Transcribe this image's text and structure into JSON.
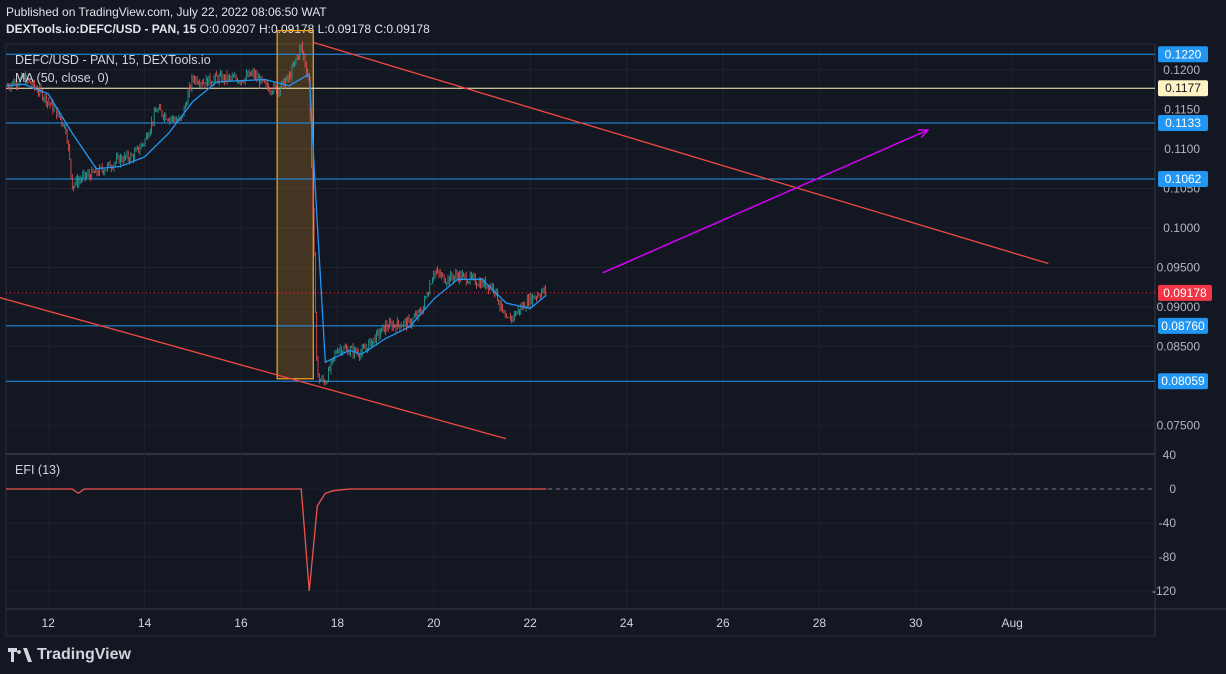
{
  "header": {
    "published": "Published on TradingView.com, July 22, 2022 08:06:50 WAT",
    "symbol_line": "DEXTools.io:DEFC/USD - PAN, 15",
    "ohlc": "O:0.09207 H:0.09178 L:0.09178 C:0.09178"
  },
  "legend": {
    "symbol": "DEFC/USD - PAN, 15, DEXTools.io",
    "ma": "MA (50, close, 0)",
    "efi": "EFI (13)"
  },
  "branding": {
    "logo_text": "TradingView"
  },
  "colors": {
    "background": "#131722",
    "grid": "#1e222d",
    "up": "#26a69a",
    "down": "#ef5350",
    "ma": "#2196f3",
    "trendline": "#f04a3e",
    "arrow": "#d500f9",
    "hline": "#2196f3",
    "resistance_yellow": "#fff3c4",
    "highlight_box": "#f5a623",
    "price_tag": "#f23645"
  },
  "chart_data": [
    {
      "type": "candlestick",
      "title": "DEFC/USD - PAN, 15, DEXTools.io",
      "x_ticks": [
        "12",
        "14",
        "16",
        "18",
        "20",
        "22",
        "24",
        "26",
        "28",
        "30",
        "Aug"
      ],
      "y_ticks": [
        "0.1200",
        "0.1150",
        "0.1100",
        "0.1050",
        "0.1000",
        "0.09500",
        "0.09000",
        "0.08500",
        "0.07500"
      ],
      "ylim": [
        0.0715,
        0.1233
      ],
      "grid": true,
      "last_price": 0.09178,
      "horizontal_levels": [
        {
          "value": 0.122,
          "label": "0.1220",
          "style": "blue"
        },
        {
          "value": 0.1177,
          "label": "0.1177",
          "style": "yellow"
        },
        {
          "value": 0.1133,
          "label": "0.1133",
          "style": "blue"
        },
        {
          "value": 0.1062,
          "label": "0.1062",
          "style": "blue"
        },
        {
          "value": 0.0876,
          "label": "0.08760",
          "style": "blue"
        },
        {
          "value": 0.08059,
          "label": "0.08059",
          "style": "blue"
        }
      ],
      "price_path": [
        [
          "Jul 11 03:00",
          0.118
        ],
        [
          "Jul 11 12:00",
          0.119
        ],
        [
          "Jul 11 21:00",
          0.117
        ],
        [
          "Jul 12 03:00",
          0.115
        ],
        [
          "Jul 12 06:00",
          0.114
        ],
        [
          "Jul 12 09:00",
          0.1125
        ],
        [
          "Jul 12 12:00",
          0.1055
        ],
        [
          "Jul 12 18:00",
          0.1065
        ],
        [
          "Jul 13 00:00",
          0.107
        ],
        [
          "Jul 13 06:00",
          0.1078
        ],
        [
          "Jul 13 12:00",
          0.1088
        ],
        [
          "Jul 13 18:00",
          0.109
        ],
        [
          "Jul 14 00:00",
          0.111
        ],
        [
          "Jul 14 06:00",
          0.115
        ],
        [
          "Jul 14 12:00",
          0.114
        ],
        [
          "Jul 14 18:00",
          0.1135
        ],
        [
          "Jul 15 00:00",
          0.119
        ],
        [
          "Jul 15 06:00",
          0.1185
        ],
        [
          "Jul 15 12:00",
          0.119
        ],
        [
          "Jul 16 00:00",
          0.1188
        ],
        [
          "Jul 16 06:00",
          0.1195
        ],
        [
          "Jul 16 12:00",
          0.118
        ],
        [
          "Jul 16 18:00",
          0.1175
        ],
        [
          "Jul 17 00:00",
          0.119
        ],
        [
          "Jul 17 06:00",
          0.123
        ],
        [
          "Jul 17 10:00",
          0.1185
        ],
        [
          "Jul 17 14:00",
          0.081
        ],
        [
          "Jul 17 18:00",
          0.0805
        ],
        [
          "Jul 18 00:00",
          0.0848
        ],
        [
          "Jul 18 06:00",
          0.0845
        ],
        [
          "Jul 18 12:00",
          0.0842
        ],
        [
          "Jul 19 00:00",
          0.0875
        ],
        [
          "Jul 19 06:00",
          0.0878
        ],
        [
          "Jul 19 12:00",
          0.088
        ],
        [
          "Jul 19 18:00",
          0.0895
        ],
        [
          "Jul 20 00:00",
          0.0945
        ],
        [
          "Jul 20 06:00",
          0.0935
        ],
        [
          "Jul 20 12:00",
          0.094
        ],
        [
          "Jul 21 00:00",
          0.093
        ],
        [
          "Jul 21 06:00",
          0.0925
        ],
        [
          "Jul 21 12:00",
          0.088
        ],
        [
          "Jul 21 18:00",
          0.0895
        ],
        [
          "Jul 22 00:00",
          0.091
        ],
        [
          "Jul 22 06:00",
          0.092
        ],
        [
          "Jul 22 08:00",
          0.09178
        ]
      ],
      "ma_path": [
        [
          "Jul 11 03:00",
          0.118
        ],
        [
          "Jul 11 12:00",
          0.1182
        ],
        [
          "Jul 12 00:00",
          0.117
        ],
        [
          "Jul 12 12:00",
          0.112
        ],
        [
          "Jul 13 00:00",
          0.1075
        ],
        [
          "Jul 13 12:00",
          0.1078
        ],
        [
          "Jul 14 00:00",
          0.109
        ],
        [
          "Jul 14 12:00",
          0.112
        ],
        [
          "Jul 15 00:00",
          0.116
        ],
        [
          "Jul 15 12:00",
          0.1185
        ],
        [
          "Jul 16 12:00",
          0.1188
        ],
        [
          "Jul 17 00:00",
          0.118
        ],
        [
          "Jul 17 10:00",
          0.1195
        ],
        [
          "Jul 17 13:00",
          0.105
        ],
        [
          "Jul 17 18:00",
          0.083
        ],
        [
          "Jul 18 06:00",
          0.0845
        ],
        [
          "Jul 18 12:00",
          0.084
        ],
        [
          "Jul 19 00:00",
          0.086
        ],
        [
          "Jul 19 12:00",
          0.0875
        ],
        [
          "Jul 20 00:00",
          0.091
        ],
        [
          "Jul 20 12:00",
          0.0935
        ],
        [
          "Jul 21 00:00",
          0.0935
        ],
        [
          "Jul 21 12:00",
          0.0905
        ],
        [
          "Jul 22 00:00",
          0.0898
        ],
        [
          "Jul 22 08:00",
          0.0915
        ]
      ],
      "trend_lines": [
        {
          "from": [
            "Jul 17 12:00",
            0.1235
          ],
          "to": [
            "Aug 1 18:00",
            0.0955
          ],
          "color": "trendline"
        },
        {
          "from": [
            "Jul 10 18:00",
            0.0916
          ],
          "to": [
            "Jul 21 12:00",
            0.0733
          ],
          "color": "trendline"
        }
      ],
      "arrow": {
        "from": [
          "Jul 23 12:00",
          0.0943
        ],
        "to": [
          "Jul 30 06:00",
          0.1124
        ],
        "color": "arrow"
      },
      "highlight_box": {
        "x0": "Jul 16 18:00",
        "x1": "Jul 17 12:00",
        "y0": 0.0809,
        "y1": 0.125
      }
    },
    {
      "type": "line",
      "title": "EFI (13)",
      "y_ticks": [
        "40",
        "0",
        "-40",
        "-80",
        "-120"
      ],
      "ylim": [
        -140,
        40
      ],
      "series": [
        {
          "name": "EFI (13)",
          "x": [
            "Jul 11 03:00",
            "Jul 12 12:00",
            "Jul 12 15:00",
            "Jul 12 18:00",
            "Jul 17 06:00",
            "Jul 17 10:00",
            "Jul 17 14:00",
            "Jul 17 18:00",
            "Jul 17 22:00",
            "Jul 18 06:00",
            "Jul 22 08:00"
          ],
          "values": [
            0,
            0,
            -5,
            0,
            0,
            -120,
            -20,
            -5,
            -2,
            0,
            0
          ]
        }
      ]
    }
  ]
}
